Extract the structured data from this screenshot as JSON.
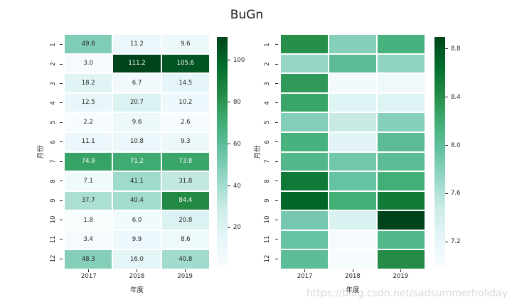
{
  "figure_title": "BuGn",
  "watermark": "https://blog.csdn.net/sadsummerholiday",
  "colormap_stops": [
    "#f7fcfd",
    "#e5f5f9",
    "#ccece6",
    "#99d8c9",
    "#66c2a4",
    "#41ae76",
    "#238b45",
    "#006d2c",
    "#00441b"
  ],
  "chart_data": [
    {
      "type": "heatmap",
      "name": "annotated-heatmap",
      "xlabel": "年度",
      "ylabel": "月份",
      "x_ticks": [
        "2017",
        "2018",
        "2019"
      ],
      "y_ticks": [
        "1",
        "2",
        "3",
        "4",
        "5",
        "6",
        "7",
        "8",
        "9",
        "10",
        "11",
        "12"
      ],
      "annotated": true,
      "vmin": 1.8,
      "vmax": 111.2,
      "colorbar_ticks": [
        "100",
        "80",
        "60",
        "40",
        "20"
      ],
      "values": [
        [
          49.8,
          11.2,
          9.6
        ],
        [
          3.0,
          111.2,
          105.6
        ],
        [
          18.2,
          6.7,
          14.5
        ],
        [
          12.5,
          20.7,
          10.2
        ],
        [
          2.2,
          9.6,
          2.6
        ],
        [
          11.1,
          10.8,
          9.3
        ],
        [
          74.9,
          71.2,
          73.8
        ],
        [
          7.1,
          41.1,
          31.8
        ],
        [
          37.7,
          40.4,
          84.4
        ],
        [
          1.8,
          6.0,
          20.8
        ],
        [
          3.4,
          9.9,
          8.6
        ],
        [
          48.3,
          16.0,
          40.8
        ]
      ]
    },
    {
      "type": "heatmap",
      "name": "plain-heatmap",
      "xlabel": "年度",
      "ylabel": "月份",
      "x_ticks": [
        "2017",
        "2018",
        "2019"
      ],
      "y_ticks": [
        "1",
        "2",
        "3",
        "4",
        "5",
        "6",
        "7",
        "8",
        "9",
        "10",
        "11",
        "12"
      ],
      "annotated": false,
      "vmin": 7.0,
      "vmax": 8.9,
      "colorbar_ticks": [
        "8.8",
        "8.4",
        "8.0",
        "7.6",
        "7.2"
      ],
      "values": [
        [
          8.4,
          7.8,
          8.14
        ],
        [
          7.73,
          8.02,
          7.76
        ],
        [
          8.33,
          7.07,
          7.1
        ],
        [
          8.25,
          7.3,
          7.3
        ],
        [
          7.82,
          7.5,
          7.8
        ],
        [
          8.14,
          7.28,
          8.03
        ],
        [
          8.08,
          7.9,
          8.02
        ],
        [
          8.56,
          7.95,
          8.18
        ],
        [
          8.7,
          8.18,
          8.55
        ],
        [
          7.88,
          7.34,
          8.9
        ],
        [
          7.95,
          7.02,
          8.08
        ],
        [
          8.01,
          7.01,
          8.42
        ]
      ]
    }
  ]
}
